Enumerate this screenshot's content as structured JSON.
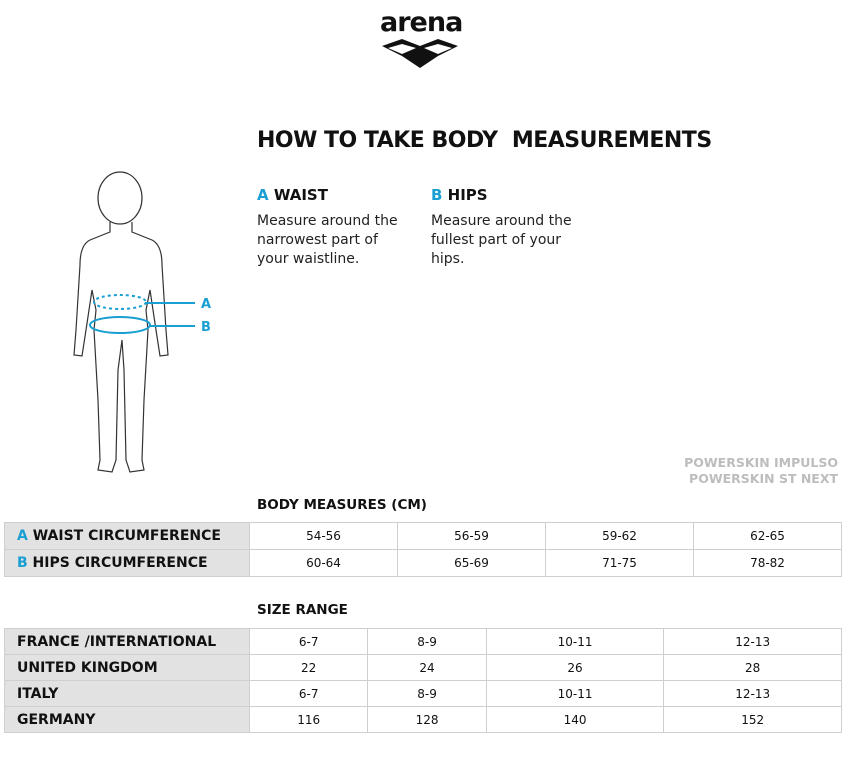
{
  "logo": "arena",
  "header": {
    "title": "HOW TO TAKE BODY  MEASUREMENTS"
  },
  "measures": [
    {
      "letter": "A",
      "label": "WAIST",
      "text": "Measure around the narrowest part of your waistline."
    },
    {
      "letter": "B",
      "label": "HIPS",
      "text": "Measure around the fullest part of your hips."
    }
  ],
  "figure": {
    "labels": [
      "A",
      "B"
    ]
  },
  "products": [
    "POWERSKIN IMPULSO",
    "POWERSKIN ST NEXT"
  ],
  "body_table": {
    "title": "BODY MEASURES (CM)",
    "rows": [
      {
        "letter": "A",
        "label": "WAIST CIRCUMFERENCE",
        "cells": [
          "54-56",
          "56-59",
          "59-62",
          "62-65"
        ]
      },
      {
        "letter": "B",
        "label": "HIPS CIRCUMFERENCE",
        "cells": [
          "60-64",
          "65-69",
          "71-75",
          "78-82"
        ]
      }
    ]
  },
  "size_table": {
    "title": "SIZE RANGE",
    "rows": [
      {
        "label": "FRANCE /INTERNATIONAL",
        "cells": [
          "6-7",
          "8-9",
          "10-11",
          "12-13"
        ]
      },
      {
        "label": "UNITED KINGDOM",
        "cells": [
          "22",
          "24",
          "26",
          "28"
        ]
      },
      {
        "label": "ITALY",
        "cells": [
          "6-7",
          "8-9",
          "10-11",
          "12-13"
        ]
      },
      {
        "label": "GERMANY",
        "cells": [
          "116",
          "128",
          "140",
          "152"
        ]
      }
    ]
  }
}
